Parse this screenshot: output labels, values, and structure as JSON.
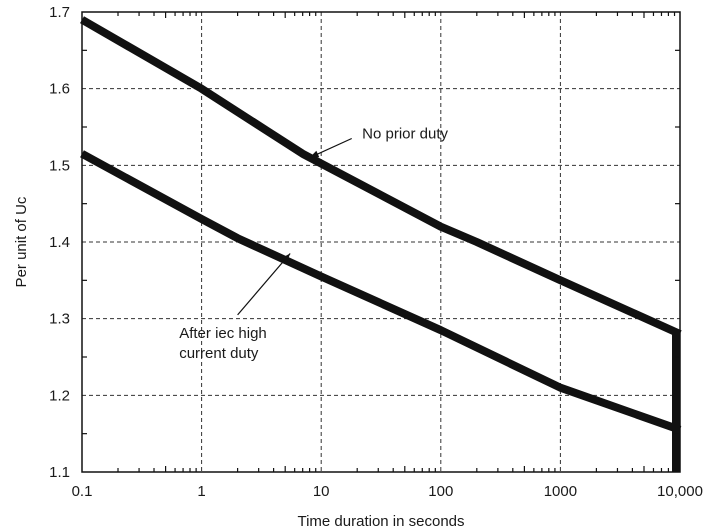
{
  "chart_data": {
    "type": "line",
    "title": "",
    "xlabel": "Time duration in seconds",
    "ylabel": "Per unit of Uc",
    "x_scale": "log",
    "xlim": [
      0.1,
      10000
    ],
    "ylim": [
      1.1,
      1.7
    ],
    "grid": true,
    "x_ticks": [
      {
        "value": 0.1,
        "label": "0.1"
      },
      {
        "value": 1,
        "label": "1"
      },
      {
        "value": 10,
        "label": "10"
      },
      {
        "value": 100,
        "label": "100"
      },
      {
        "value": 1000,
        "label": "1000"
      },
      {
        "value": 10000,
        "label": "10,000"
      }
    ],
    "y_ticks": [
      {
        "value": 1.1,
        "label": "1.1"
      },
      {
        "value": 1.2,
        "label": "1.2"
      },
      {
        "value": 1.3,
        "label": "1.3"
      },
      {
        "value": 1.4,
        "label": "1.4"
      },
      {
        "value": 1.5,
        "label": "1.5"
      },
      {
        "value": 1.6,
        "label": "1.6"
      },
      {
        "value": 1.7,
        "label": "1.7"
      }
    ],
    "series": [
      {
        "points": [
          {
            "x": 0.1,
            "y": 1.69
          },
          {
            "x": 1,
            "y": 1.6
          },
          {
            "x": 7,
            "y": 1.515
          },
          {
            "x": 100,
            "y": 1.42
          },
          {
            "x": 200,
            "y": 1.4
          },
          {
            "x": 1000,
            "y": 1.35
          },
          {
            "x": 10000,
            "y": 1.28
          }
        ]
      },
      {
        "points": [
          {
            "x": 0.1,
            "y": 1.515
          },
          {
            "x": 1,
            "y": 1.43
          },
          {
            "x": 2,
            "y": 1.405
          },
          {
            "x": 10,
            "y": 1.355
          },
          {
            "x": 100,
            "y": 1.285
          },
          {
            "x": 1000,
            "y": 1.21
          },
          {
            "x": 10000,
            "y": 1.155
          }
        ]
      }
    ],
    "end_bar": {
      "x": 10000,
      "y_from": 1.1,
      "y_to": 1.28
    },
    "annotations": [
      {
        "lines": [
          "No prior duty"
        ],
        "text_x": 22,
        "text_y": 1.535,
        "arrow_from_x": 18,
        "arrow_from_y": 1.535,
        "arrow_to_x": 8,
        "arrow_to_y": 1.51
      },
      {
        "lines": [
          "After iec high",
          "current duty"
        ],
        "text_x": 0.65,
        "text_y": 1.275,
        "arrow_from_x": 2,
        "arrow_from_y": 1.305,
        "arrow_to_x": 5.5,
        "arrow_to_y": 1.385
      }
    ]
  }
}
